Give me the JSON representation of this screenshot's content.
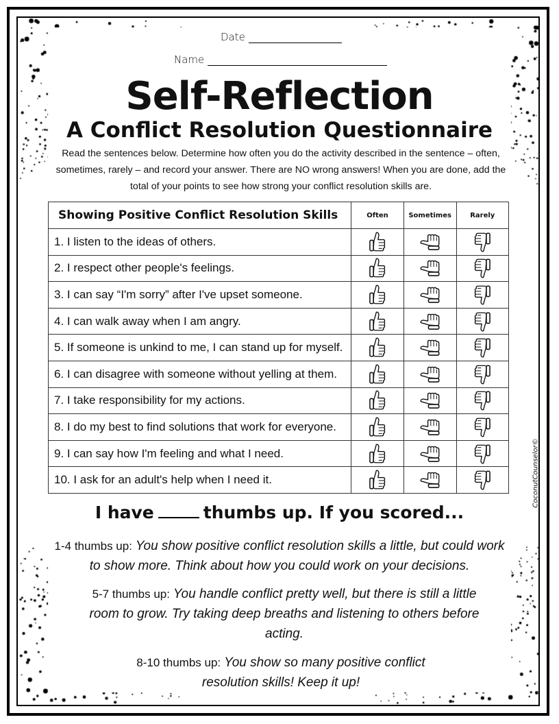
{
  "header": {
    "date_label": "Date",
    "name_label": "Name"
  },
  "title": "Self-Reflection",
  "subtitle": "A Conflict Resolution Questionnaire",
  "instructions": "Read the sentences below. Determine how often you do the activity described in the sentence – often, sometimes, rarely – and record your answer. There are NO wrong answers! When you are done, add the total of your points to see how strong your conflict resolution skills are.",
  "table": {
    "heading": "Showing Positive Conflict Resolution Skills",
    "columns": [
      "Often",
      "Sometimes",
      "Rarely"
    ],
    "column_icons": [
      "thumbs-up-icon",
      "thumbs-sideways-icon",
      "thumbs-down-icon"
    ],
    "rows": [
      "1. I listen to the ideas of others.",
      "2. I respect other people's feelings.",
      "3. I can say “I'm sorry” after I've upset someone.",
      "4. I can walk away when I am angry.",
      "5. If someone is unkind to me, I can stand up for myself.",
      "6. I can disagree with someone without yelling at them.",
      "7. I take responsibility for my actions.",
      "8. I do my best to find solutions that work for everyone.",
      "9. I can say how I'm feeling and what I need.",
      "10. I ask for an adult's help when I need it."
    ]
  },
  "score": {
    "prefix": "I have",
    "suffix": "thumbs up.",
    "lead": "If you scored..."
  },
  "results": [
    {
      "range": "1-4 thumbs up:",
      "text": "You show positive conflict resolution skills a little, but could work to show more. Think about how you could work on your decisions."
    },
    {
      "range": "5-7 thumbs up:",
      "text": "You handle conflict pretty well, but there is still a little room to grow. Try taking deep breaths and listening to others before acting."
    },
    {
      "range": "8-10 thumbs up:",
      "text": "You show so many positive conflict resolution skills! Keep it up!"
    }
  ],
  "watermark": "CoconutCounselor©"
}
